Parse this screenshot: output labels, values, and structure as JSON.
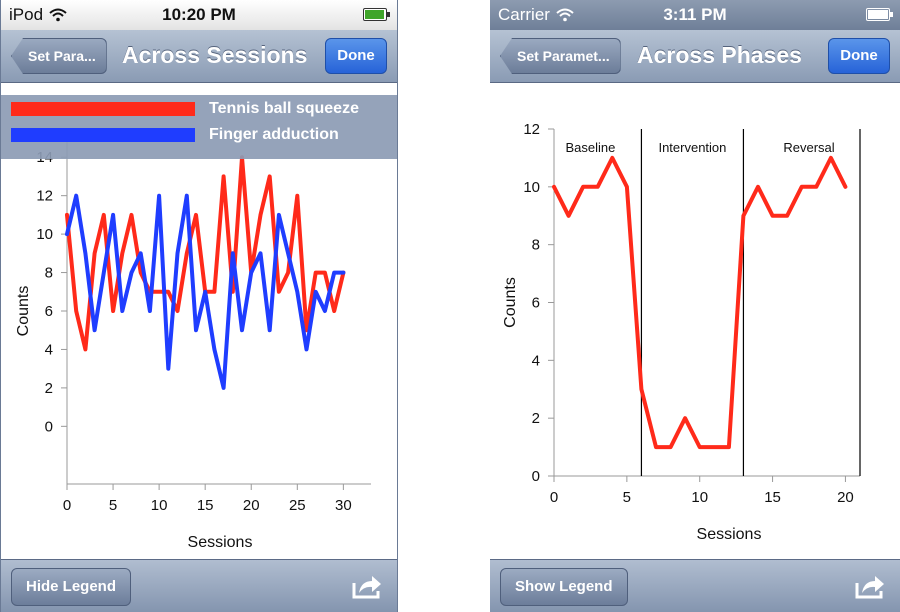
{
  "left": {
    "status": {
      "carrier": "iPod",
      "time": "10:20 PM"
    },
    "nav": {
      "back_label": "Set Para...",
      "title": "Across Sessions",
      "done_label": "Done"
    },
    "toolbar": {
      "legend_button_label": "Hide Legend",
      "share_icon": "share-icon"
    },
    "legend": [
      {
        "label": "Tennis ball squeeze",
        "color": "#ff2a1a"
      },
      {
        "label": "Finger adduction",
        "color": "#1f3dff"
      }
    ]
  },
  "right": {
    "status": {
      "carrier": "Carrier",
      "time": "3:11 PM"
    },
    "nav": {
      "back_label": "Set Paramet...",
      "title": "Across Phases",
      "done_label": "Done"
    },
    "toolbar": {
      "legend_button_label": "Show Legend",
      "share_icon": "share-icon"
    }
  },
  "chart_data": [
    {
      "type": "line",
      "xlabel": "Sessions",
      "ylabel": "Counts",
      "xlim": [
        0,
        33
      ],
      "ylim": [
        -3,
        15
      ],
      "x_ticks": [
        0,
        5,
        10,
        15,
        20,
        25,
        30
      ],
      "y_ticks": [
        0,
        2,
        4,
        6,
        8,
        10,
        12,
        14
      ],
      "series": [
        {
          "name": "Tennis ball squeeze",
          "color": "#ff2a1a",
          "x": [
            0,
            1,
            2,
            3,
            4,
            5,
            6,
            7,
            8,
            9,
            10,
            11,
            12,
            13,
            14,
            15,
            16,
            17,
            18,
            19,
            20,
            21,
            22,
            23,
            24,
            25,
            26,
            27,
            28,
            29,
            30
          ],
          "y": [
            11,
            6,
            4,
            9,
            11,
            6,
            9,
            11,
            8,
            7,
            7,
            7,
            6,
            9,
            11,
            7,
            7,
            13,
            7,
            14,
            8,
            11,
            13,
            7,
            8,
            12,
            5,
            8,
            8,
            6,
            8
          ]
        },
        {
          "name": "Finger adduction",
          "color": "#1f3dff",
          "x": [
            0,
            1,
            2,
            3,
            4,
            5,
            6,
            7,
            8,
            9,
            10,
            11,
            12,
            13,
            14,
            15,
            16,
            17,
            18,
            19,
            20,
            21,
            22,
            23,
            24,
            25,
            26,
            27,
            28,
            29,
            30
          ],
          "y": [
            10,
            12,
            9,
            5,
            8,
            11,
            6,
            8,
            9,
            6,
            12,
            3,
            9,
            12,
            5,
            7,
            4,
            2,
            9,
            5,
            8,
            9,
            5,
            11,
            9,
            7,
            4,
            7,
            6,
            8,
            8
          ]
        }
      ]
    },
    {
      "type": "line",
      "xlabel": "Sessions",
      "ylabel": "Counts",
      "xlim": [
        0,
        21
      ],
      "ylim": [
        0,
        12
      ],
      "x_ticks": [
        0,
        5,
        10,
        15,
        20
      ],
      "y_ticks": [
        0,
        2,
        4,
        6,
        8,
        10,
        12
      ],
      "phase_lines": [
        6,
        13,
        21
      ],
      "phases": [
        {
          "label": "Baseline",
          "x_center": 2.5
        },
        {
          "label": "Intervention",
          "x_center": 9.5
        },
        {
          "label": "Reversal",
          "x_center": 17.5
        }
      ],
      "series": [
        {
          "color": "#ff2a1a",
          "x": [
            0,
            1,
            2,
            3,
            4,
            5,
            6,
            7,
            8,
            9,
            10,
            11,
            12,
            13,
            14,
            15,
            16,
            17,
            18,
            19,
            20
          ],
          "y": [
            10,
            9,
            10,
            10,
            11,
            10,
            3,
            1,
            1,
            2,
            1,
            1,
            1,
            9,
            10,
            9,
            9,
            10,
            10,
            11,
            10
          ]
        }
      ]
    }
  ]
}
